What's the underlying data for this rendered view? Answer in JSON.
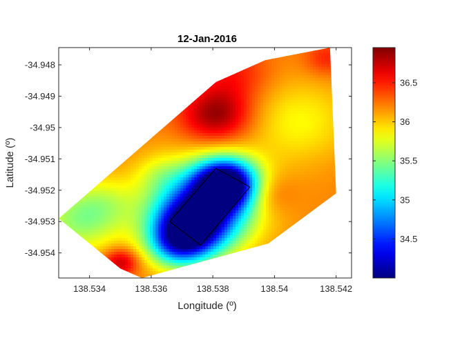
{
  "chart_data": {
    "type": "heatmap",
    "title": "12-Jan-2016",
    "xlabel": "Longitude (º)",
    "ylabel": "Latitude (º)",
    "xlim": [
      138.533,
      138.5425
    ],
    "ylim": [
      -34.9548,
      -34.94745
    ],
    "x_ticks": [
      138.534,
      138.536,
      138.538,
      138.54,
      138.542
    ],
    "x_tick_labels": [
      "138.534",
      "138.536",
      "138.538",
      "138.54",
      "138.542"
    ],
    "y_ticks": [
      -34.948,
      -34.949,
      -34.95,
      -34.951,
      -34.952,
      -34.953,
      -34.954
    ],
    "y_tick_labels": [
      "-34.948",
      "-34.949",
      "-34.95",
      "-34.951",
      "-34.952",
      "-34.953",
      "-34.954"
    ],
    "colorbar": {
      "range": [
        34.0,
        36.95
      ],
      "ticks": [
        34.5,
        35,
        35.5,
        36,
        36.5
      ],
      "tick_labels": [
        "34.5",
        "35",
        "35.5",
        "36",
        "36.5"
      ],
      "colormap": "jet"
    },
    "grid": false,
    "background_value": 36.2,
    "boundary": [
      [
        138.533,
        -34.9529
      ],
      [
        138.535,
        -34.9545
      ],
      [
        138.5357,
        -34.9548
      ],
      [
        138.5398,
        -34.9537
      ],
      [
        138.542,
        -34.9521
      ],
      [
        138.5418,
        -34.94745
      ],
      [
        138.5397,
        -34.94785
      ],
      [
        138.5381,
        -34.94855
      ]
    ],
    "highlight_rectangle": [
      [
        138.5366,
        -34.953
      ],
      [
        138.5381,
        -34.9513
      ],
      [
        138.5392,
        -34.9519
      ],
      [
        138.5376,
        -34.95375
      ]
    ],
    "field_anomalies": [
      {
        "x": 138.5384,
        "y": -34.9518,
        "delta": -2.3,
        "spread": 0.0007
      },
      {
        "x": 138.5374,
        "y": -34.953,
        "delta": -1.8,
        "spread": 0.0009
      },
      {
        "x": 138.5369,
        "y": -34.9537,
        "delta": -1.2,
        "spread": 0.0007
      },
      {
        "x": 138.5378,
        "y": -34.9524,
        "delta": -0.9,
        "spread": 0.0013
      },
      {
        "x": 138.5381,
        "y": -34.9496,
        "delta": 0.7,
        "spread": 0.0008
      },
      {
        "x": 138.5387,
        "y": -34.9483,
        "delta": 0.3,
        "spread": 0.0008
      },
      {
        "x": 138.535,
        "y": -34.9543,
        "delta": 0.6,
        "spread": 0.0004
      },
      {
        "x": 138.5336,
        "y": -34.953,
        "delta": -0.6,
        "spread": 0.001
      },
      {
        "x": 138.5345,
        "y": -34.9524,
        "delta": -0.3,
        "spread": 0.0008
      },
      {
        "x": 138.5408,
        "y": -34.9498,
        "delta": -0.35,
        "spread": 0.0012
      },
      {
        "x": 138.5397,
        "y": -34.9521,
        "delta": 0.3,
        "spread": 0.0006
      },
      {
        "x": 138.5363,
        "y": -34.9515,
        "delta": -0.25,
        "spread": 0.0006
      },
      {
        "x": 138.5417,
        "y": -34.9478,
        "delta": 0.3,
        "spread": 0.0005
      }
    ]
  }
}
